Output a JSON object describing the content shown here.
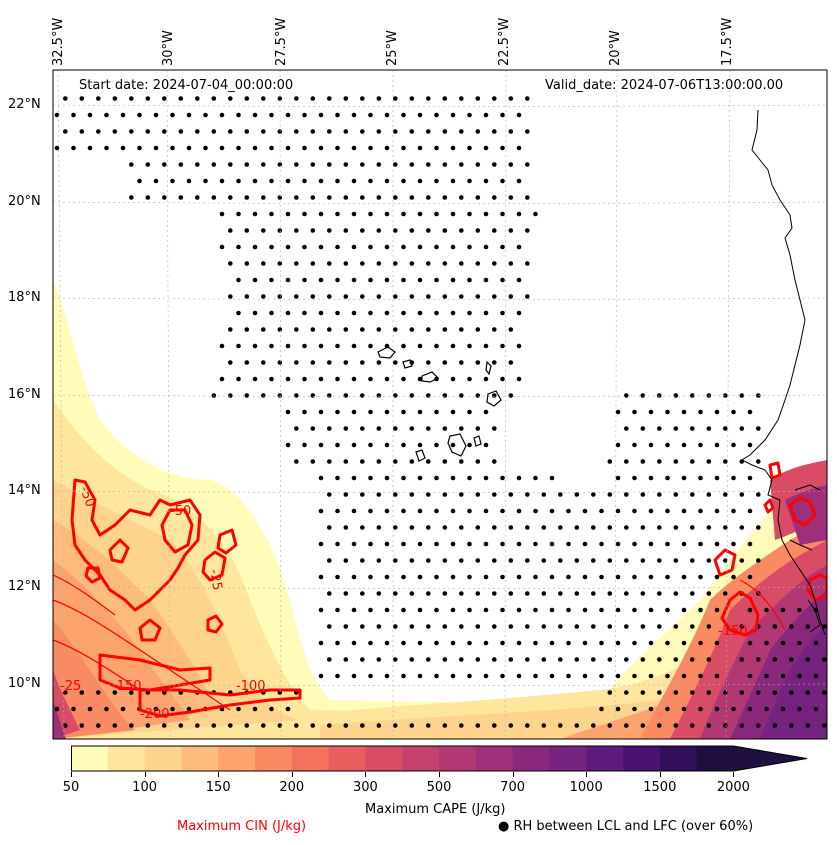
{
  "header": {
    "start_date": "Start date: 2024-07-04_00:00:00",
    "valid_date": "Valid_date: 2024-07-06T13:00:00.00"
  },
  "axes": {
    "longitudes": [
      "32.5°W",
      "30°W",
      "27.5°W",
      "25°W",
      "22.5°W",
      "20°W",
      "17.5°W"
    ],
    "latitudes": [
      "22°N",
      "20°N",
      "18°N",
      "16°N",
      "14°N",
      "12°N",
      "10°N"
    ]
  },
  "colorbar": {
    "label": "Maximum CAPE (J/kg)",
    "ticks": [
      "50",
      "100",
      "150",
      "200",
      "300",
      "500",
      "700",
      "1000",
      "1500",
      "2000"
    ],
    "colors": [
      "#fffbb8",
      "#fee69d",
      "#fed38c",
      "#fdbb7c",
      "#fca36e",
      "#fa8a62",
      "#f4725c",
      "#e85d5d",
      "#d84c65",
      "#c5416d",
      "#b23874",
      "#9e2f79",
      "#8a297c",
      "#75237e",
      "#601a7f",
      "#4b1273",
      "#320f5a",
      "#1e0f40"
    ]
  },
  "legend": {
    "cin_label": "Maximum CIN (J/kg)",
    "cin_color": "#ff0000",
    "rh_symbol": "●",
    "rh_label": "RH between LCL and LFC (over 60%)"
  },
  "contour_labels": [
    "-150",
    "-100",
    "-150",
    "-50",
    "-50",
    "-25",
    "-200",
    "-25"
  ]
}
